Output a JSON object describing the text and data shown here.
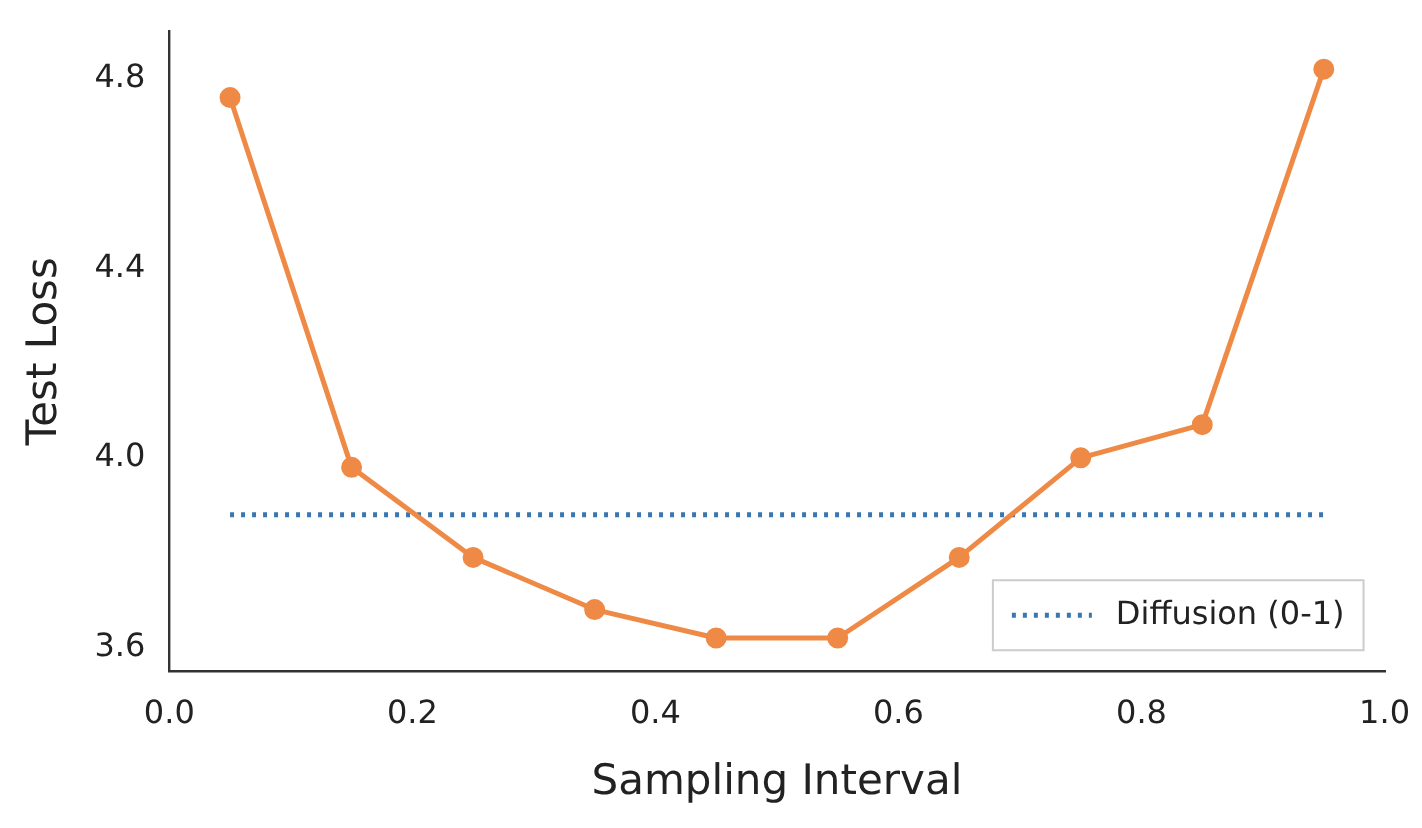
{
  "chart_data": {
    "type": "line",
    "xlabel": "Sampling Interval",
    "ylabel": "Test Loss",
    "x": [
      0.05,
      0.15,
      0.25,
      0.35,
      0.45,
      0.55,
      0.65,
      0.75,
      0.85,
      0.95
    ],
    "series": [
      {
        "color": "#ee8a45",
        "marker": "circle",
        "line_style": "solid",
        "values": [
          4.76,
          3.98,
          3.79,
          3.68,
          3.62,
          3.62,
          3.79,
          4.0,
          4.07,
          4.82
        ]
      },
      {
        "name": "Diffusion (0-1)",
        "color": "#3a76af",
        "marker": "none",
        "line_style": "dotted",
        "x": [
          0.05,
          0.95
        ],
        "values": [
          3.88,
          3.88
        ]
      }
    ],
    "xlim": [
      0,
      1
    ],
    "xticks": [
      {
        "value": 0,
        "label": "0.0"
      },
      0.2,
      0.4,
      0.6,
      0.8,
      {
        "value": 1,
        "label": "1.0"
      }
    ],
    "ylim": [
      3.55,
      4.9
    ],
    "yticks": [
      3.6,
      {
        "value": 4,
        "label": "4.0"
      },
      4.4,
      4.8
    ],
    "grid": false,
    "legend": "bottom right"
  }
}
